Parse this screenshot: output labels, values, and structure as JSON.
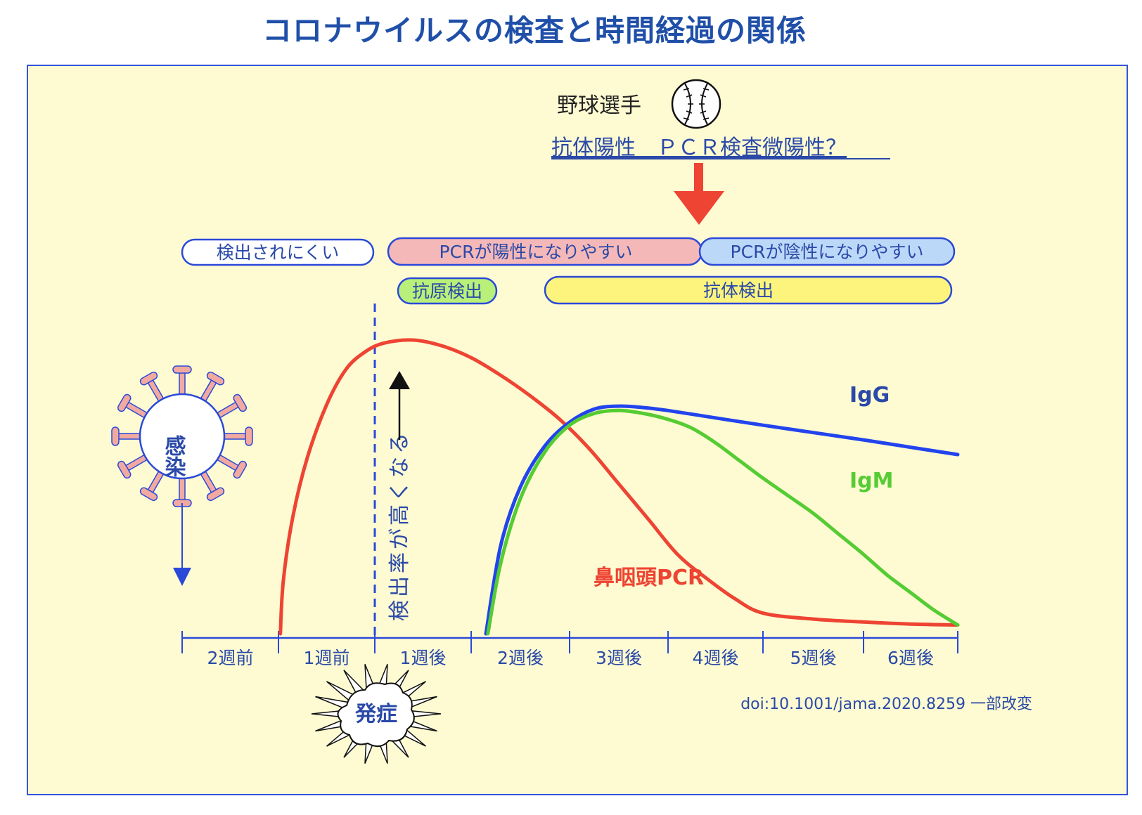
{
  "title": "コロナウイルスの検査と時間経過の関係",
  "annotation": {
    "player": "野球選手",
    "finding": "抗体陽性　ＰＣＲ検査微陽性？",
    "baseball_icon": "baseball-icon",
    "arrow_color": "#ee4433"
  },
  "bands": {
    "hard_to_detect": "検出されにくい",
    "pcr_positive": "PCRが陽性になりやすい",
    "pcr_negative": "PCRが陰性になりやすい",
    "antigen": "抗原検出",
    "antibody": "抗体検出"
  },
  "infection_label": "感染",
  "onset_label": "発症",
  "detection_label": "検出率が高くなる",
  "source": "doi:10.1001/jama.2020.8259 一部改変",
  "colors": {
    "pcr": "#ee4433",
    "igg": "#2244ee",
    "igm": "#55cc33",
    "title": "#1f4fa8",
    "pcr_positive_band": "#f4b8b8",
    "pcr_negative_band": "#bcd8f8",
    "antigen_band": "#b8f07a",
    "antibody_band": "#fdf47e"
  },
  "chart_data": {
    "type": "line",
    "categories": [
      "2週前",
      "1週前",
      "1週後",
      "2週後",
      "3週後",
      "4週後",
      "5週後",
      "6週後"
    ],
    "x_range_weeks": [
      -2,
      6
    ],
    "y_range": [
      0,
      100
    ],
    "onset_week": 0,
    "grid": false,
    "series": [
      {
        "name": "鼻咽頭PCR",
        "color": "#ee4433",
        "points": [
          [
            -0.98,
            0
          ],
          [
            -0.95,
            18
          ],
          [
            -0.85,
            40
          ],
          [
            -0.7,
            60
          ],
          [
            -0.5,
            78
          ],
          [
            -0.3,
            90
          ],
          [
            -0.1,
            96
          ],
          [
            0.1,
            99
          ],
          [
            0.4,
            100
          ],
          [
            0.7,
            98
          ],
          [
            1,
            94
          ],
          [
            1.3,
            88
          ],
          [
            1.6,
            81
          ],
          [
            1.9,
            73
          ],
          [
            2.2,
            63
          ],
          [
            2.5,
            51
          ],
          [
            2.8,
            39
          ],
          [
            3.1,
            27
          ],
          [
            3.4,
            19
          ],
          [
            3.7,
            12
          ],
          [
            4,
            7
          ],
          [
            4.5,
            5
          ],
          [
            5,
            4
          ],
          [
            5.5,
            3.3
          ],
          [
            6,
            3
          ]
        ]
      },
      {
        "name": "IgG",
        "color": "#2244ee",
        "points": [
          [
            1.15,
            0
          ],
          [
            1.3,
            30
          ],
          [
            1.5,
            50
          ],
          [
            1.75,
            64
          ],
          [
            2,
            72
          ],
          [
            2.25,
            76.5
          ],
          [
            2.5,
            77.5
          ],
          [
            2.75,
            77
          ],
          [
            3,
            76
          ],
          [
            3.5,
            73.5
          ],
          [
            4,
            71
          ],
          [
            4.5,
            68.5
          ],
          [
            5,
            66
          ],
          [
            5.5,
            63.5
          ],
          [
            6,
            61
          ]
        ]
      },
      {
        "name": "IgM",
        "color": "#55cc33",
        "points": [
          [
            1.17,
            0
          ],
          [
            1.3,
            24
          ],
          [
            1.5,
            46
          ],
          [
            1.75,
            62
          ],
          [
            2,
            71
          ],
          [
            2.25,
            75
          ],
          [
            2.5,
            76
          ],
          [
            2.75,
            75
          ],
          [
            3,
            73
          ],
          [
            3.25,
            70
          ],
          [
            3.5,
            65
          ],
          [
            3.75,
            59
          ],
          [
            4,
            53
          ],
          [
            4.25,
            47
          ],
          [
            4.5,
            41
          ],
          [
            4.75,
            34
          ],
          [
            5,
            27
          ],
          [
            5.25,
            20
          ],
          [
            5.5,
            14
          ],
          [
            5.75,
            8
          ],
          [
            6,
            3
          ]
        ]
      }
    ],
    "labels": {
      "igg": "IgG",
      "igm": "IgM",
      "pcr": "鼻咽頭PCR"
    }
  }
}
